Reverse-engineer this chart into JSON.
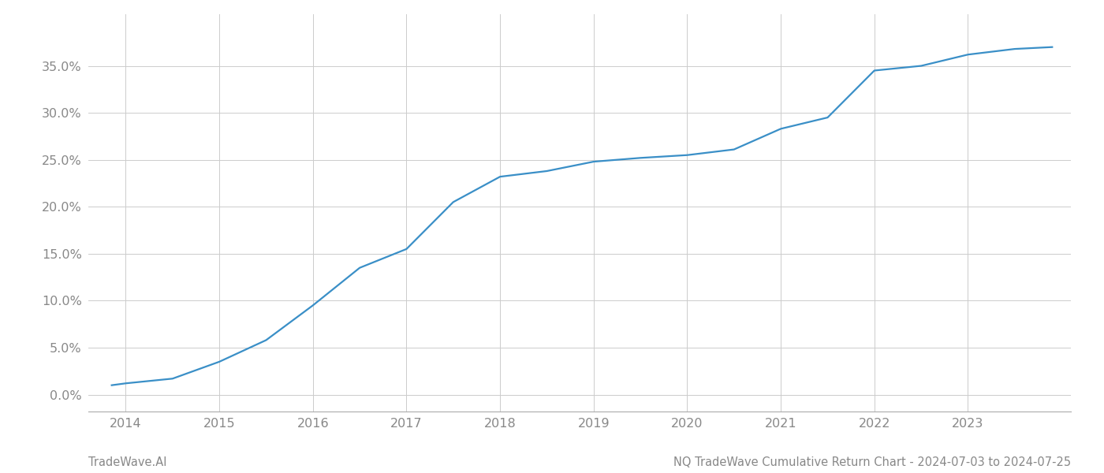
{
  "x_values": [
    2013.85,
    2014.0,
    2014.5,
    2015.0,
    2015.5,
    2016.0,
    2016.5,
    2017.0,
    2017.5,
    2018.0,
    2018.5,
    2019.0,
    2019.5,
    2020.0,
    2020.5,
    2021.0,
    2021.5,
    2022.0,
    2022.5,
    2023.0,
    2023.5,
    2023.9
  ],
  "y_values": [
    0.01,
    0.012,
    0.017,
    0.035,
    0.058,
    0.095,
    0.135,
    0.155,
    0.205,
    0.232,
    0.238,
    0.248,
    0.252,
    0.255,
    0.261,
    0.283,
    0.295,
    0.345,
    0.35,
    0.362,
    0.368,
    0.37
  ],
  "line_color": "#3a8fc7",
  "line_width": 1.6,
  "background_color": "#ffffff",
  "grid_color": "#cccccc",
  "title_text": "NQ TradeWave Cumulative Return Chart - 2024-07-03 to 2024-07-25",
  "watermark_text": "TradeWave.AI",
  "xlim": [
    2013.6,
    2024.1
  ],
  "ylim": [
    -0.018,
    0.405
  ],
  "yticks": [
    0.0,
    0.05,
    0.1,
    0.15,
    0.2,
    0.25,
    0.3,
    0.35
  ],
  "xticks": [
    2014,
    2015,
    2016,
    2017,
    2018,
    2019,
    2020,
    2021,
    2022,
    2023
  ],
  "tick_label_color": "#888888",
  "title_fontsize": 10.5,
  "watermark_fontsize": 10.5,
  "tick_fontsize": 11.5
}
